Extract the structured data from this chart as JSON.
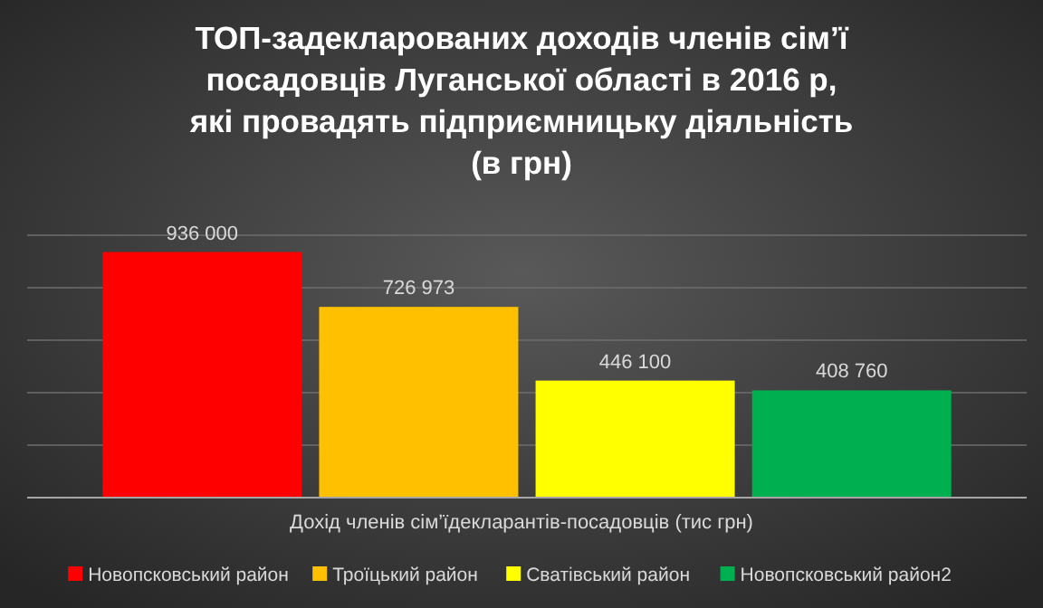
{
  "chart_data": {
    "type": "bar",
    "title": "ТОП-задекларованих доходів членів сім’ї\nпосадовців Луганської області в 2016 р,\nякі провадять підприємницьку діяльність\n(в грн)",
    "xlabel": "Дохід членів сім’їдекларантів-посадовців (тис грн)",
    "categories": [
      null
    ],
    "series": [
      {
        "name": "Новопсковський район",
        "color": "#ff0000",
        "values": [
          936000
        ],
        "value_labels": [
          "936 000"
        ]
      },
      {
        "name": "Троїцький район",
        "color": "#ffc000",
        "values": [
          726973
        ],
        "value_labels": [
          "726 973"
        ]
      },
      {
        "name": "Сватівський район",
        "color": "#ffff00",
        "values": [
          446100
        ],
        "value_labels": [
          "446 100"
        ]
      },
      {
        "name": "Новопсковський район2",
        "color": "#00b050",
        "values": [
          408760
        ],
        "value_labels": [
          "408 760"
        ]
      }
    ],
    "ylim": [
      0,
      1000000
    ],
    "yticks": [
      {
        "value": 0,
        "label": null
      },
      {
        "value": 200000,
        "label": null
      },
      {
        "value": 400000,
        "label": null
      },
      {
        "value": 600000,
        "label": null
      },
      {
        "value": 800000,
        "label": null
      },
      {
        "value": 1000000,
        "label": null
      }
    ],
    "grid": "y",
    "legend": "bottom"
  }
}
